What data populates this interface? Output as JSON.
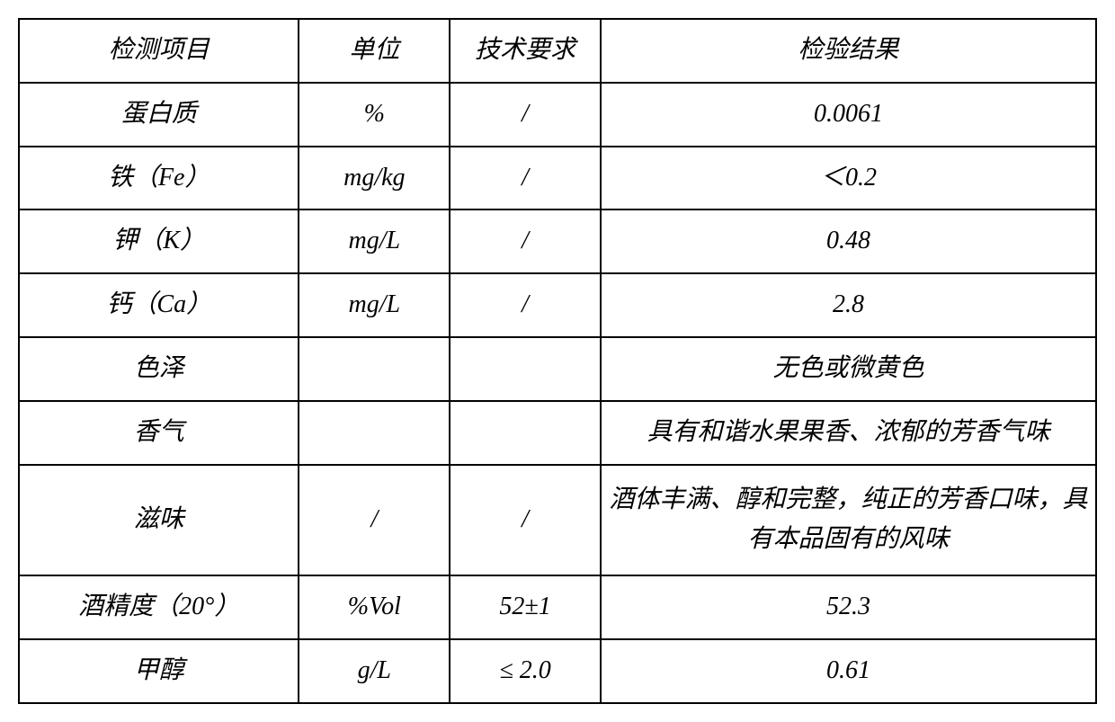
{
  "table": {
    "border_color": "#000000",
    "border_width": 2,
    "background_color": "#ffffff",
    "font_size": 28,
    "font_style": "italic",
    "font_family": "SimSun",
    "text_align": "center",
    "column_widths_pct": [
      26,
      14,
      14,
      46
    ],
    "columns": [
      "检测项目",
      "单位",
      "技术要求",
      "检验结果"
    ],
    "rows": [
      {
        "item": "蛋白质",
        "unit": "%",
        "req": "/",
        "result": "0.0061"
      },
      {
        "item": "铁（Fe）",
        "unit": "mg/kg",
        "req": "/",
        "result": "＜0.2"
      },
      {
        "item": "钾（K）",
        "unit": "mg/L",
        "req": "/",
        "result": "0.48"
      },
      {
        "item": "钙（Ca）",
        "unit": "mg/L",
        "req": "/",
        "result": "2.8"
      },
      {
        "item": "色泽",
        "unit": "",
        "req": "",
        "result": "无色或微黄色"
      },
      {
        "item": "香气",
        "unit": "",
        "req": "",
        "result": "具有和谐水果果香、浓郁的芳香气味"
      },
      {
        "item": "滋味",
        "unit": "/",
        "req": "/",
        "result": "酒体丰满、醇和完整，纯正的芳香口味，具有本品固有的风味"
      },
      {
        "item": "酒精度（20°）",
        "unit": "%Vol",
        "req": "52±1",
        "result": "52.3"
      },
      {
        "item": "甲醇",
        "unit": "g/L",
        "req": "≤ 2.0",
        "result": "0.61"
      }
    ]
  }
}
